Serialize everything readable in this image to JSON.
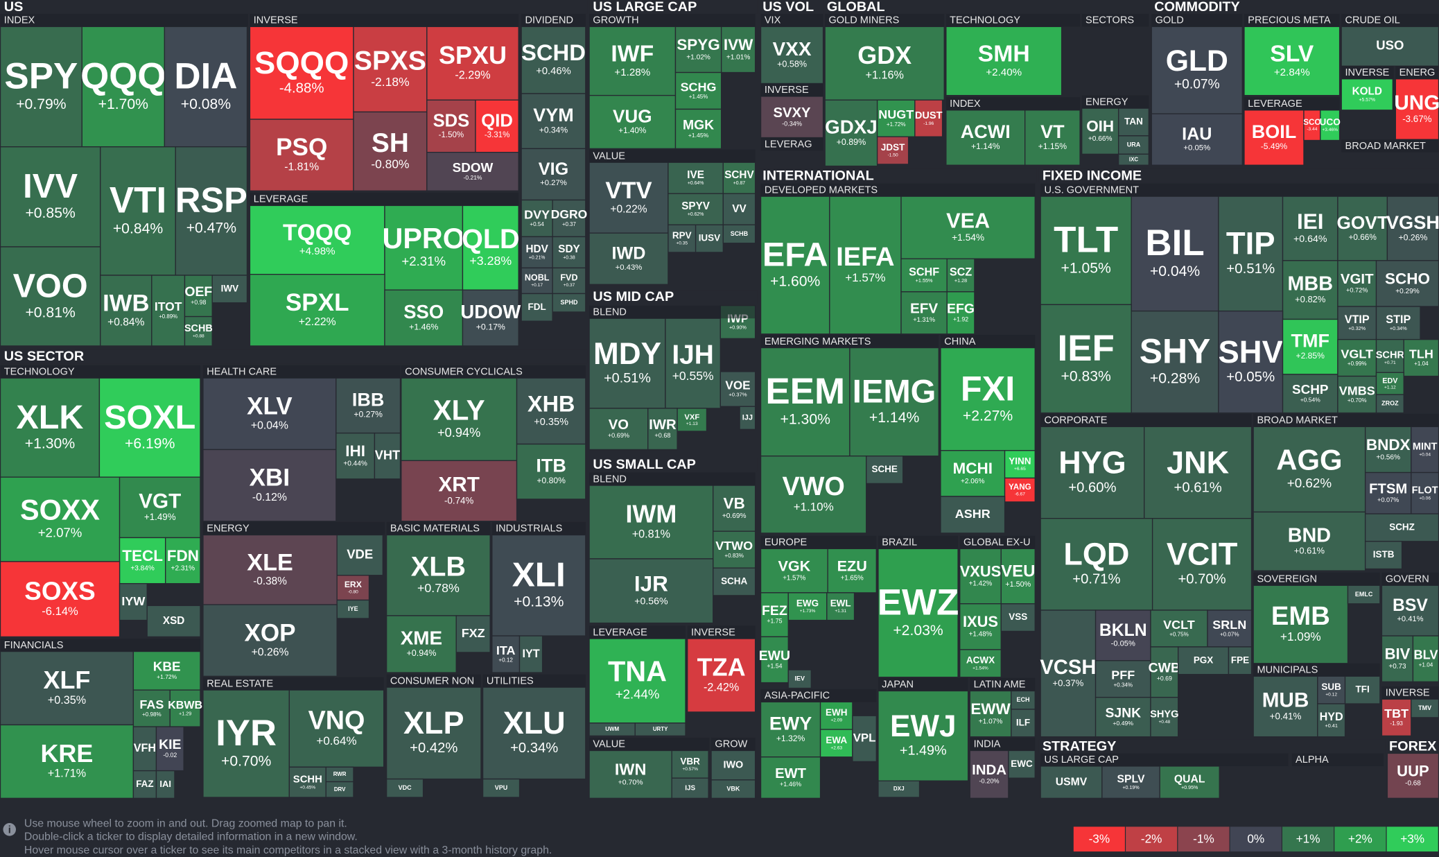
{
  "sections": [
    "US",
    "US LARGE CAP",
    "US VOL",
    "GLOBAL",
    "COMMODITY",
    "US SECTOR",
    "US MID CAP",
    "US SMALL CAP",
    "INTERNATIONAL",
    "FIXED INCOME",
    "STRATEGY",
    "FOREX"
  ],
  "groups": [
    "INDEX",
    "INVERSE",
    "DIVIDEND",
    "LEVERAGE",
    "GROWTH",
    "VALUE",
    "VIX",
    "INVERSE",
    "LEVERAG",
    "GOLD MINERS",
    "TECHNOLOGY",
    "INDEX",
    "SECTORS",
    "ENERGY",
    "GOLD",
    "PRECIOUS META",
    "CRUDE OIL",
    "INVERSE",
    "ENERG",
    "LEVERAGE",
    "BROAD MARKET",
    "TECHNOLOGY",
    "HEALTH CARE",
    "CONSUMER CYCLICALS",
    "ENERGY",
    "BASIC MATERIALS",
    "INDUSTRIALS",
    "FINANCIALS",
    "REAL ESTATE",
    "CONSUMER NON",
    "UTILITIES",
    "BLEND",
    "BLEND",
    "LEVERAGE",
    "INVERSE",
    "VALUE",
    "GROW",
    "DEVELOPED MARKETS",
    "EMERGING MARKETS",
    "CHINA",
    "EUROPE",
    "BRAZIL",
    "GLOBAL EX-U",
    "ASIA-PACIFIC",
    "JAPAN",
    "LATIN AME",
    "INDIA",
    "U.S. GOVERNMENT",
    "CORPORATE",
    "BROAD MARKET",
    "SOVEREIGN",
    "GOVERN",
    "MUNICIPALS",
    "INVERSE",
    "US LARGE CAP",
    "ALPHA"
  ],
  "tiles": [
    {
      "ticker": "SPY",
      "change": "+0.79%"
    },
    {
      "ticker": "QQQ",
      "change": "+1.70%"
    },
    {
      "ticker": "DIA",
      "change": "+0.08%"
    },
    {
      "ticker": "IVV",
      "change": "+0.85%"
    },
    {
      "ticker": "VTI",
      "change": "+0.84%"
    },
    {
      "ticker": "RSP",
      "change": "+0.47%"
    },
    {
      "ticker": "VOO",
      "change": "+0.81%"
    },
    {
      "ticker": "IWB",
      "change": "+0.84%"
    },
    {
      "ticker": "ITOT",
      "change": "+0.89%"
    },
    {
      "ticker": "OEF",
      "change": "+0.98"
    },
    {
      "ticker": "SCHB",
      "change": "+0.88"
    },
    {
      "ticker": "IWV"
    },
    {
      "ticker": "SQQQ",
      "change": "-4.88%"
    },
    {
      "ticker": "SPXS",
      "change": "-2.18%"
    },
    {
      "ticker": "SPXU",
      "change": "-2.29%"
    },
    {
      "ticker": "PSQ",
      "change": "-1.81%"
    },
    {
      "ticker": "SH",
      "change": "-0.80%"
    },
    {
      "ticker": "SDS",
      "change": "-1.50%"
    },
    {
      "ticker": "QID",
      "change": "-3.31%"
    },
    {
      "ticker": "SDOW",
      "change": "-0.21%"
    },
    {
      "ticker": "SCHD",
      "change": "+0.46%"
    },
    {
      "ticker": "VYM",
      "change": "+0.34%"
    },
    {
      "ticker": "VIG",
      "change": "+0.27%"
    },
    {
      "ticker": "DVY",
      "change": "+0.54"
    },
    {
      "ticker": "DGRO",
      "change": "+0.37"
    },
    {
      "ticker": "HDV",
      "change": "+0.21%"
    },
    {
      "ticker": "SDY",
      "change": "+0.38"
    },
    {
      "ticker": "NOBL",
      "change": "+0.17"
    },
    {
      "ticker": "FVD",
      "change": "+0.37"
    },
    {
      "ticker": "FDL"
    },
    {
      "ticker": "SPHD"
    },
    {
      "ticker": "TQQQ",
      "change": "+4.98%"
    },
    {
      "ticker": "UPRO",
      "change": "+2.31%"
    },
    {
      "ticker": "QLD",
      "change": "+3.28%"
    },
    {
      "ticker": "SPXL",
      "change": "+2.22%"
    },
    {
      "ticker": "SSO",
      "change": "+1.46%"
    },
    {
      "ticker": "UDOW",
      "change": "+0.17%"
    },
    {
      "ticker": "IWF",
      "change": "+1.28%"
    },
    {
      "ticker": "SPYG",
      "change": "+1.02%"
    },
    {
      "ticker": "IVW",
      "change": "+1.01%"
    },
    {
      "ticker": "VUG",
      "change": "+1.40%"
    },
    {
      "ticker": "SCHG",
      "change": "+1.45%"
    },
    {
      "ticker": "MGK",
      "change": "+1.45%"
    },
    {
      "ticker": "VTV",
      "change": "+0.22%"
    },
    {
      "ticker": "IVE",
      "change": "+0.64%"
    },
    {
      "ticker": "SCHV",
      "change": "+0.87"
    },
    {
      "ticker": "SPYV",
      "change": "+0.62%"
    },
    {
      "ticker": "VV"
    },
    {
      "ticker": "RPV",
      "change": "+0.35"
    },
    {
      "ticker": "IUSV"
    },
    {
      "ticker": "SCHB"
    },
    {
      "ticker": "IWD",
      "change": "+0.43%"
    },
    {
      "ticker": "VXX",
      "change": "+0.58%"
    },
    {
      "ticker": "SVXY",
      "change": "-0.34%"
    },
    {
      "ticker": "GDX",
      "change": "+1.16%"
    },
    {
      "ticker": "GDXJ",
      "change": "+0.89%"
    },
    {
      "ticker": "NUGT",
      "change": "+1.72%"
    },
    {
      "ticker": "DUST",
      "change": "-1.96"
    },
    {
      "ticker": "JDST",
      "change": "-1.50"
    },
    {
      "ticker": "SMH",
      "change": "+2.40%"
    },
    {
      "ticker": "ACWI",
      "change": "+1.14%"
    },
    {
      "ticker": "VT",
      "change": "+1.15%"
    },
    {
      "ticker": "OIH",
      "change": "+0.66%"
    },
    {
      "ticker": "TAN"
    },
    {
      "ticker": "URA"
    },
    {
      "ticker": "IXC"
    },
    {
      "ticker": "GLD",
      "change": "+0.07%"
    },
    {
      "ticker": "IAU",
      "change": "+0.05%"
    },
    {
      "ticker": "SLV",
      "change": "+2.84%"
    },
    {
      "ticker": "USO"
    },
    {
      "ticker": "KOLD",
      "change": "+5.57%"
    },
    {
      "ticker": "UNG",
      "change": "-3.67%"
    },
    {
      "ticker": "BOIL",
      "change": "-5.49%"
    },
    {
      "ticker": "SCO",
      "change": "-3.44"
    },
    {
      "ticker": "UCO",
      "change": "+3.46%"
    },
    {
      "ticker": "MDY",
      "change": "+0.51%"
    },
    {
      "ticker": "IJH",
      "change": "+0.55%"
    },
    {
      "ticker": "IWP",
      "change": "+0.90%"
    },
    {
      "ticker": "VOE",
      "change": "+0.37%"
    },
    {
      "ticker": "IJJ"
    },
    {
      "ticker": "VO",
      "change": "+0.69%"
    },
    {
      "ticker": "IWR",
      "change": "+0.68"
    },
    {
      "ticker": "VXF",
      "change": "+1.13"
    },
    {
      "ticker": "IWM",
      "change": "+0.81%"
    },
    {
      "ticker": "VB",
      "change": "+0.69%"
    },
    {
      "ticker": "VTWO",
      "change": "+0.83%"
    },
    {
      "ticker": "SCHA"
    },
    {
      "ticker": "IJR",
      "change": "+0.56%"
    },
    {
      "ticker": "TNA",
      "change": "+2.44%"
    },
    {
      "ticker": "UWM"
    },
    {
      "ticker": "URTY"
    },
    {
      "ticker": "TZA",
      "change": "-2.42%"
    },
    {
      "ticker": "IWN",
      "change": "+0.70%"
    },
    {
      "ticker": "VBR",
      "change": "+0.57%"
    },
    {
      "ticker": "IJS"
    },
    {
      "ticker": "IWO"
    },
    {
      "ticker": "VBK"
    },
    {
      "ticker": "XLK",
      "change": "+1.30%"
    },
    {
      "ticker": "SOXL",
      "change": "+6.19%"
    },
    {
      "ticker": "SOXX",
      "change": "+2.07%"
    },
    {
      "ticker": "VGT",
      "change": "+1.49%"
    },
    {
      "ticker": "TECL",
      "change": "+3.84%"
    },
    {
      "ticker": "FDN",
      "change": "+2.31%"
    },
    {
      "ticker": "SOXS",
      "change": "-6.14%"
    },
    {
      "ticker": "IYW"
    },
    {
      "ticker": "XSD"
    },
    {
      "ticker": "XLF",
      "change": "+0.35%"
    },
    {
      "ticker": "KBE",
      "change": "+1.72%"
    },
    {
      "ticker": "FAS",
      "change": "+0.98%"
    },
    {
      "ticker": "KBWB",
      "change": "+1.29"
    },
    {
      "ticker": "KRE",
      "change": "+1.71%"
    },
    {
      "ticker": "VFH"
    },
    {
      "ticker": "KIE",
      "change": "-0.02"
    },
    {
      "ticker": "FAZ"
    },
    {
      "ticker": "IAI"
    },
    {
      "ticker": "XLV",
      "change": "+0.04%"
    },
    {
      "ticker": "IBB",
      "change": "+0.27%"
    },
    {
      "ticker": "XBI",
      "change": "-0.12%"
    },
    {
      "ticker": "IHI",
      "change": "+0.44%"
    },
    {
      "ticker": "VHT"
    },
    {
      "ticker": "XLY",
      "change": "+0.94%"
    },
    {
      "ticker": "XHB",
      "change": "+0.35%"
    },
    {
      "ticker": "XRT",
      "change": "-0.74%"
    },
    {
      "ticker": "ITB",
      "change": "+0.80%"
    },
    {
      "ticker": "XLE",
      "change": "-0.38%"
    },
    {
      "ticker": "VDE"
    },
    {
      "ticker": "ERX",
      "change": "-0.80"
    },
    {
      "ticker": "IYE"
    },
    {
      "ticker": "XOP",
      "change": "+0.26%"
    },
    {
      "ticker": "XLB",
      "change": "+0.78%"
    },
    {
      "ticker": "XME",
      "change": "+0.94%"
    },
    {
      "ticker": "FXZ"
    },
    {
      "ticker": "XLI",
      "change": "+0.13%"
    },
    {
      "ticker": "ITA",
      "change": "+0.12"
    },
    {
      "ticker": "IYT"
    },
    {
      "ticker": "IYR",
      "change": "+0.70%"
    },
    {
      "ticker": "VNQ",
      "change": "+0.64%"
    },
    {
      "ticker": "SCHH",
      "change": "+0.45%"
    },
    {
      "ticker": "RWR"
    },
    {
      "ticker": "DRV"
    },
    {
      "ticker": "XLP",
      "change": "+0.42%"
    },
    {
      "ticker": "VDC"
    },
    {
      "ticker": "XLU",
      "change": "+0.34%"
    },
    {
      "ticker": "VPU"
    },
    {
      "ticker": "EFA",
      "change": "+1.60%"
    },
    {
      "ticker": "IEFA",
      "change": "+1.57%"
    },
    {
      "ticker": "VEA",
      "change": "+1.54%"
    },
    {
      "ticker": "SCHF",
      "change": "+1.55%"
    },
    {
      "ticker": "SCZ",
      "change": "+1.28"
    },
    {
      "ticker": "EFV",
      "change": "+1.31%"
    },
    {
      "ticker": "EFG",
      "change": "+1.92"
    },
    {
      "ticker": "EEM",
      "change": "+1.30%"
    },
    {
      "ticker": "IEMG",
      "change": "+1.14%"
    },
    {
      "ticker": "VWO",
      "change": "+1.10%"
    },
    {
      "ticker": "SCHE"
    },
    {
      "ticker": "FXI",
      "change": "+2.27%"
    },
    {
      "ticker": "MCHI",
      "change": "+2.06%"
    },
    {
      "ticker": "YINN",
      "change": "+6.65"
    },
    {
      "ticker": "YANG",
      "change": "-6.67"
    },
    {
      "ticker": "ASHR"
    },
    {
      "ticker": "VGK",
      "change": "+1.57%"
    },
    {
      "ticker": "EZU",
      "change": "+1.65%"
    },
    {
      "ticker": "FEZ",
      "change": "+1.75"
    },
    {
      "ticker": "EWG",
      "change": "+1.73%"
    },
    {
      "ticker": "EWL",
      "change": "+1.31"
    },
    {
      "ticker": "EWU",
      "change": "+1.54"
    },
    {
      "ticker": "IEV"
    },
    {
      "ticker": "EWZ",
      "change": "+2.03%"
    },
    {
      "ticker": "VXUS",
      "change": "+1.42%"
    },
    {
      "ticker": "VEU",
      "change": "+1.50%"
    },
    {
      "ticker": "IXUS",
      "change": "+1.48%"
    },
    {
      "ticker": "VSS"
    },
    {
      "ticker": "ACWX",
      "change": "+1.54%"
    },
    {
      "ticker": "EWY",
      "change": "+1.32%"
    },
    {
      "ticker": "EWH",
      "change": "+2.09"
    },
    {
      "ticker": "EWA",
      "change": "+2.63"
    },
    {
      "ticker": "VPL"
    },
    {
      "ticker": "EWT",
      "change": "+1.46%"
    },
    {
      "ticker": "EWJ",
      "change": "+1.49%"
    },
    {
      "ticker": "DXJ"
    },
    {
      "ticker": "EWW",
      "change": "+1.07%"
    },
    {
      "ticker": "ECH"
    },
    {
      "ticker": "ILF"
    },
    {
      "ticker": "INDA",
      "change": "-0.20%"
    },
    {
      "ticker": "EWC"
    },
    {
      "ticker": "TLT",
      "change": "+1.05%"
    },
    {
      "ticker": "BIL",
      "change": "+0.04%"
    },
    {
      "ticker": "TIP",
      "change": "+0.51%"
    },
    {
      "ticker": "IEI",
      "change": "+0.64%"
    },
    {
      "ticker": "GOVT",
      "change": "+0.66%"
    },
    {
      "ticker": "VGSH",
      "change": "+0.26%"
    },
    {
      "ticker": "MBB",
      "change": "+0.82%"
    },
    {
      "ticker": "VGIT",
      "change": "+0.72%"
    },
    {
      "ticker": "SCHO",
      "change": "+0.29%"
    },
    {
      "ticker": "VTIP",
      "change": "+0.32%"
    },
    {
      "ticker": "STIP",
      "change": "+0.34%"
    },
    {
      "ticker": "IEF",
      "change": "+0.83%"
    },
    {
      "ticker": "SHY",
      "change": "+0.28%"
    },
    {
      "ticker": "SHV",
      "change": "+0.05%"
    },
    {
      "ticker": "TMF",
      "change": "+2.85%"
    },
    {
      "ticker": "SCHP",
      "change": "+0.54%"
    },
    {
      "ticker": "VGLT",
      "change": "+0.99%"
    },
    {
      "ticker": "SCHR",
      "change": "+0.71"
    },
    {
      "ticker": "TLH",
      "change": "+1.04"
    },
    {
      "ticker": "VMBS",
      "change": "+0.70%"
    },
    {
      "ticker": "EDV",
      "change": "+1.12"
    },
    {
      "ticker": "ZROZ"
    },
    {
      "ticker": "HYG",
      "change": "+0.60%"
    },
    {
      "ticker": "JNK",
      "change": "+0.61%"
    },
    {
      "ticker": "LQD",
      "change": "+0.71%"
    },
    {
      "ticker": "VCIT",
      "change": "+0.70%"
    },
    {
      "ticker": "VCSH",
      "change": "+0.37%"
    },
    {
      "ticker": "BKLN",
      "change": "-0.05%"
    },
    {
      "ticker": "VCLT",
      "change": "+0.75%"
    },
    {
      "ticker": "SRLN",
      "change": "+0.07%"
    },
    {
      "ticker": "PFF",
      "change": "+0.34%"
    },
    {
      "ticker": "CWB",
      "change": "+0.69"
    },
    {
      "ticker": "PGX"
    },
    {
      "ticker": "FPE"
    },
    {
      "ticker": "SJNK",
      "change": "+0.49%"
    },
    {
      "ticker": "SHYG",
      "change": "+0.48"
    },
    {
      "ticker": "AGG",
      "change": "+0.62%"
    },
    {
      "ticker": "BNDX",
      "change": "+0.56%"
    },
    {
      "ticker": "MINT",
      "change": "+0.04"
    },
    {
      "ticker": "FTSM",
      "change": "+0.07%"
    },
    {
      "ticker": "FLOT",
      "change": "+0.06"
    },
    {
      "ticker": "BND",
      "change": "+0.61%"
    },
    {
      "ticker": "SCHZ"
    },
    {
      "ticker": "ISTB"
    },
    {
      "ticker": "EMB",
      "change": "+1.09%"
    },
    {
      "ticker": "EMLC"
    },
    {
      "ticker": "BSV",
      "change": "+0.41%"
    },
    {
      "ticker": "BIV",
      "change": "+0.73"
    },
    {
      "ticker": "BLV",
      "change": "+1.04"
    },
    {
      "ticker": "MUB",
      "change": "+0.41%"
    },
    {
      "ticker": "SUB",
      "change": "+0.12"
    },
    {
      "ticker": "TFI"
    },
    {
      "ticker": "HYD",
      "change": "+0.41"
    },
    {
      "ticker": "TBT",
      "change": "-1.93"
    },
    {
      "ticker": "TMV"
    },
    {
      "ticker": "USMV"
    },
    {
      "ticker": "SPLV",
      "change": "+0.19%"
    },
    {
      "ticker": "QUAL",
      "change": "+0.95%"
    },
    {
      "ticker": "UUP",
      "change": "-0.68"
    }
  ],
  "help": [
    "Use mouse wheel to zoom in and out. Drag zoomed map to pan it.",
    "Double-click a ticker to display detailed information in a new window.",
    "Hover mouse cursor over a ticker to see its main competitors in a stacked view with a 3-month history graph."
  ],
  "legend": [
    "-3%",
    "-2%",
    "-1%",
    "0%",
    "+1%",
    "+2%",
    "+3%"
  ]
}
